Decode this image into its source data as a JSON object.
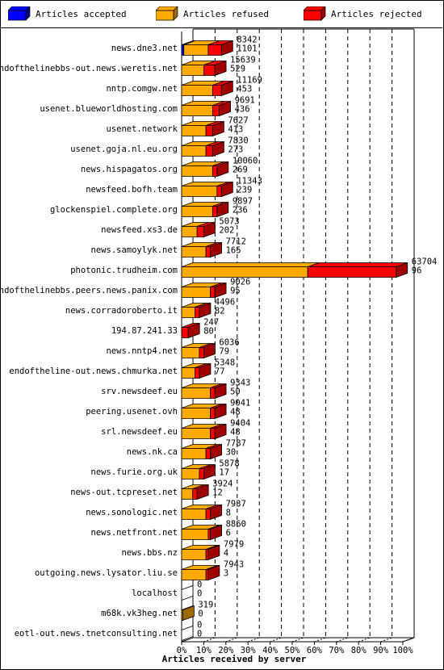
{
  "legend": [
    {
      "label": "Articles accepted",
      "color": "#0000ff",
      "dark": "#000080"
    },
    {
      "label": "Articles refused",
      "color": "#ffaa00",
      "dark": "#a06800"
    },
    {
      "label": "Articles rejected",
      "color": "#ff0000",
      "dark": "#a00000"
    }
  ],
  "chart_data": {
    "type": "bar",
    "orientation": "horizontal",
    "stacked": true,
    "title": "",
    "xlabel": "Articles received by server",
    "ylabel": "",
    "xlim": [
      0,
      100
    ],
    "x_ticks": [
      "0%",
      "10%",
      "20%",
      "30%",
      "40%",
      "50%",
      "60%",
      "70%",
      "80%",
      "90%",
      "100%"
    ],
    "categories": [
      "news.dne3.net",
      "endofthelinebbs-out.news.weretis.net",
      "nntp.comgw.net",
      "usenet.blueworldhosting.com",
      "usenet.network",
      "usenet.goja.nl.eu.org",
      "news.hispagatos.org",
      "newsfeed.bofh.team",
      "glockenspiel.complete.org",
      "newsfeed.xs3.de",
      "news.samoylyk.net",
      "photonic.trudheim.com",
      "endofthelinebbs.peers.news.panix.com",
      "news.corradoroberto.it",
      "194.87.241.33",
      "news.nntp4.net",
      "endoftheline-out.news.chmurka.net",
      "srv.newsdeef.eu",
      "peering.usenet.ovh",
      "srl.newsdeef.eu",
      "news.nk.ca",
      "news.furie.org.uk",
      "news-out.tcpreset.net",
      "news.sonologic.net",
      "news.netfront.net",
      "news.bbs.nz",
      "outgoing.news.lysator.liu.se",
      "localhost",
      "m68k.vk3heg.net",
      "eotl-out.news.tnetconsulting.net"
    ],
    "labels_top": [
      "8342",
      "15639",
      "11169",
      "9691",
      "7627",
      "7830",
      "10060",
      "11343",
      "9897",
      "5073",
      "7712",
      "63704",
      "9026",
      "4496",
      "247",
      "6036",
      "5348",
      "9343",
      "9041",
      "9404",
      "7787",
      "5878",
      "3924",
      "7937",
      "8860",
      "7979",
      "7943",
      "0",
      "319",
      "0"
    ],
    "labels_bottom": [
      "1101",
      "529",
      "453",
      "436",
      "413",
      "273",
      "269",
      "239",
      "236",
      "202",
      "165",
      "96",
      "95",
      "82",
      "80",
      "79",
      "77",
      "50",
      "48",
      "48",
      "30",
      "17",
      "12",
      "8",
      "6",
      "4",
      "3",
      "0",
      "0",
      "0"
    ],
    "series": [
      {
        "name": "Articles accepted",
        "values": [
          1,
          0,
          0,
          0,
          0,
          0,
          0,
          0,
          0,
          0,
          0,
          0,
          0,
          0,
          0,
          0,
          0,
          0,
          0,
          0,
          0,
          0,
          0,
          0,
          0,
          0,
          0,
          0,
          0,
          0
        ]
      },
      {
        "name": "Articles refused",
        "values": [
          11,
          10,
          14,
          14,
          11,
          11,
          14,
          16,
          14,
          7,
          11,
          57,
          13,
          6,
          0,
          8,
          6,
          13,
          13,
          13,
          11,
          8,
          5,
          11,
          12,
          11,
          11,
          0,
          0.5,
          0
        ]
      },
      {
        "name": "Articles rejected",
        "values": [
          6,
          5,
          4,
          3,
          3,
          3,
          2,
          2,
          2,
          3,
          2,
          40,
          2,
          2,
          3,
          2,
          2,
          2,
          2,
          2,
          2,
          2,
          2,
          2,
          1,
          1,
          1,
          0,
          0,
          0
        ]
      }
    ]
  }
}
